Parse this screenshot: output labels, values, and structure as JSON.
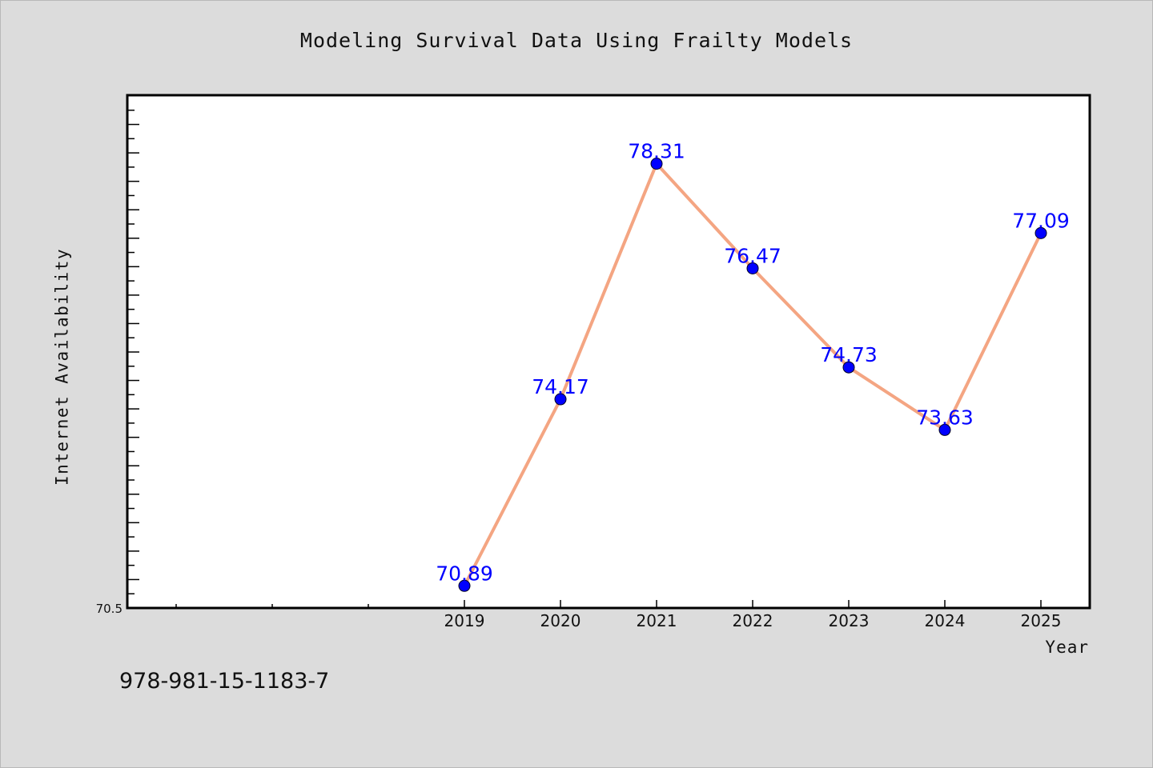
{
  "chart_data": {
    "type": "line",
    "title": "Modeling Survival Data Using Frailty Models",
    "xlabel": "Year",
    "ylabel": "Internet Availability",
    "categories": [
      "2019",
      "2020",
      "2021",
      "2022",
      "2023",
      "2024",
      "2025"
    ],
    "series": [
      {
        "values": [
          70.89,
          74.17,
          78.31,
          76.47,
          74.73,
          73.63,
          77.09
        ],
        "line_color": "#f4a582",
        "marker_color": "#0000ff"
      }
    ],
    "data_labels": [
      "70.89",
      "74.17",
      "78.31",
      "76.47",
      "74.73",
      "73.63",
      "77.09"
    ],
    "ylim": [
      70.5,
      79.5
    ],
    "xlim": [
      2015.5,
      2025.5
    ],
    "y_tick_label": "70.5",
    "grid": false,
    "label_color": "#0000ff"
  },
  "footer": {
    "isbn": "978-981-15-1183-7"
  }
}
